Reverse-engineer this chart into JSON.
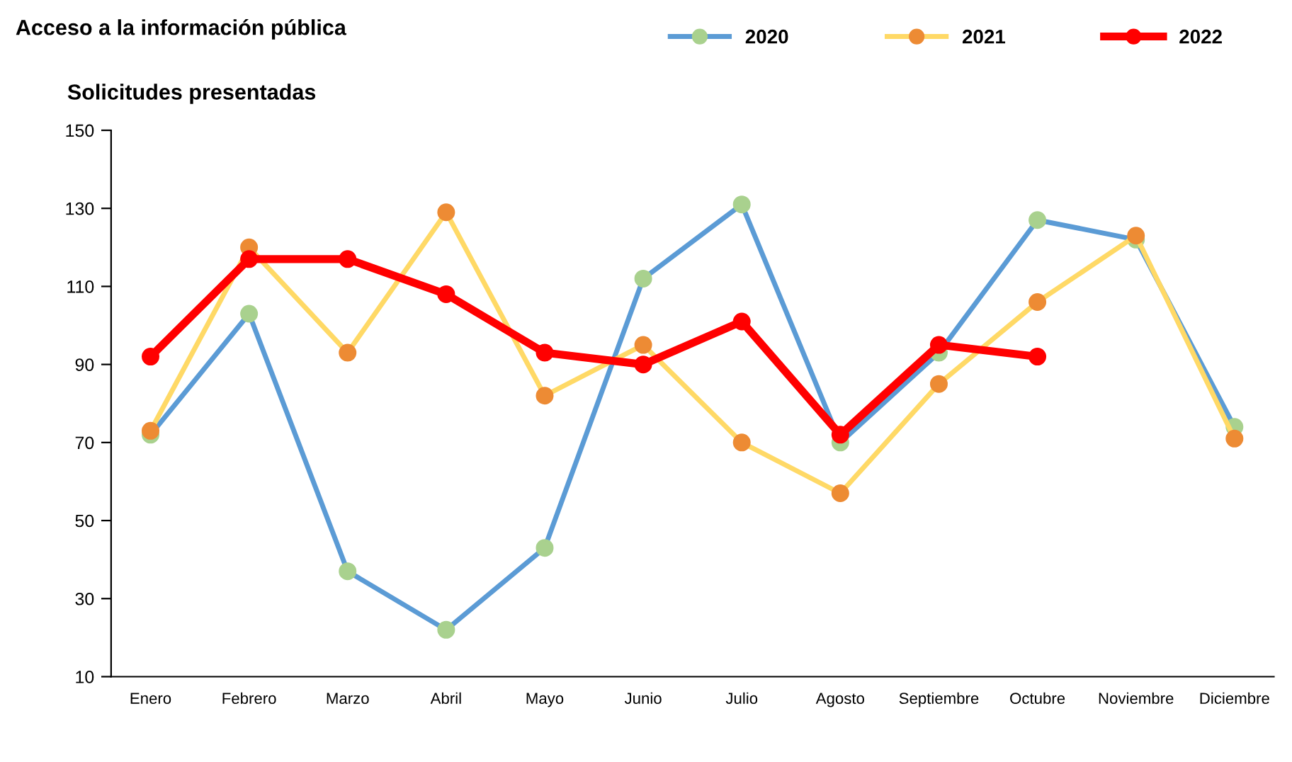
{
  "chart_data": {
    "type": "line",
    "title": "Acceso a la información pública",
    "subtitle": "Solicitudes presentadas",
    "categories": [
      "Enero",
      "Febrero",
      "Marzo",
      "Abril",
      "Mayo",
      "Junio",
      "Julio",
      "Agosto",
      "Septiembre",
      "Octubre",
      "Noviembre",
      "Diciembre"
    ],
    "series": [
      {
        "name": "2020",
        "color": "#5b9bd5",
        "colors": [
          "#a9d18e",
          "#a9d18e",
          "#a9d18e",
          "#a9d18e",
          "#a9d18e",
          "#a9d18e",
          "#a9d18e",
          "#a9d18e",
          "#a9d18e",
          "#a9d18e",
          "#a9d18e",
          "#a9d18e"
        ],
        "values": [
          72,
          103,
          37,
          22,
          43,
          112,
          131,
          70,
          93,
          127,
          122,
          74
        ]
      },
      {
        "name": "2021",
        "color": "#ffd966",
        "colors": [
          "#ed8b34",
          "#ed8b34",
          "#ed8b34",
          "#ed8b34",
          "#ed8b34",
          "#ed8b34",
          "#ed8b34",
          "#ed8b34",
          "#ed8b34",
          "#ed8b34",
          "#ed8b34",
          "#ed8b34"
        ],
        "values": [
          73,
          120,
          93,
          129,
          82,
          95,
          70,
          57,
          85,
          106,
          123,
          71
        ]
      },
      {
        "name": "2022",
        "color": "#ff0000",
        "colors": [
          "#ff0000",
          "#ff0000",
          "#ff0000",
          "#ff0000",
          "#ff0000",
          "#ff0000",
          "#ff0000",
          "#ff0000",
          "#ff0000",
          "#ff0000",
          "#ff0000",
          "#ff0000"
        ],
        "values": [
          92,
          117,
          117,
          108,
          93,
          90,
          101,
          72,
          95,
          92,
          null,
          null
        ]
      }
    ],
    "ylim": [
      10,
      150
    ],
    "yticks": [
      10,
      30,
      50,
      70,
      90,
      110,
      130,
      150
    ],
    "grid": false,
    "legend": "top right",
    "marker": "circle",
    "line_style": "solid"
  }
}
